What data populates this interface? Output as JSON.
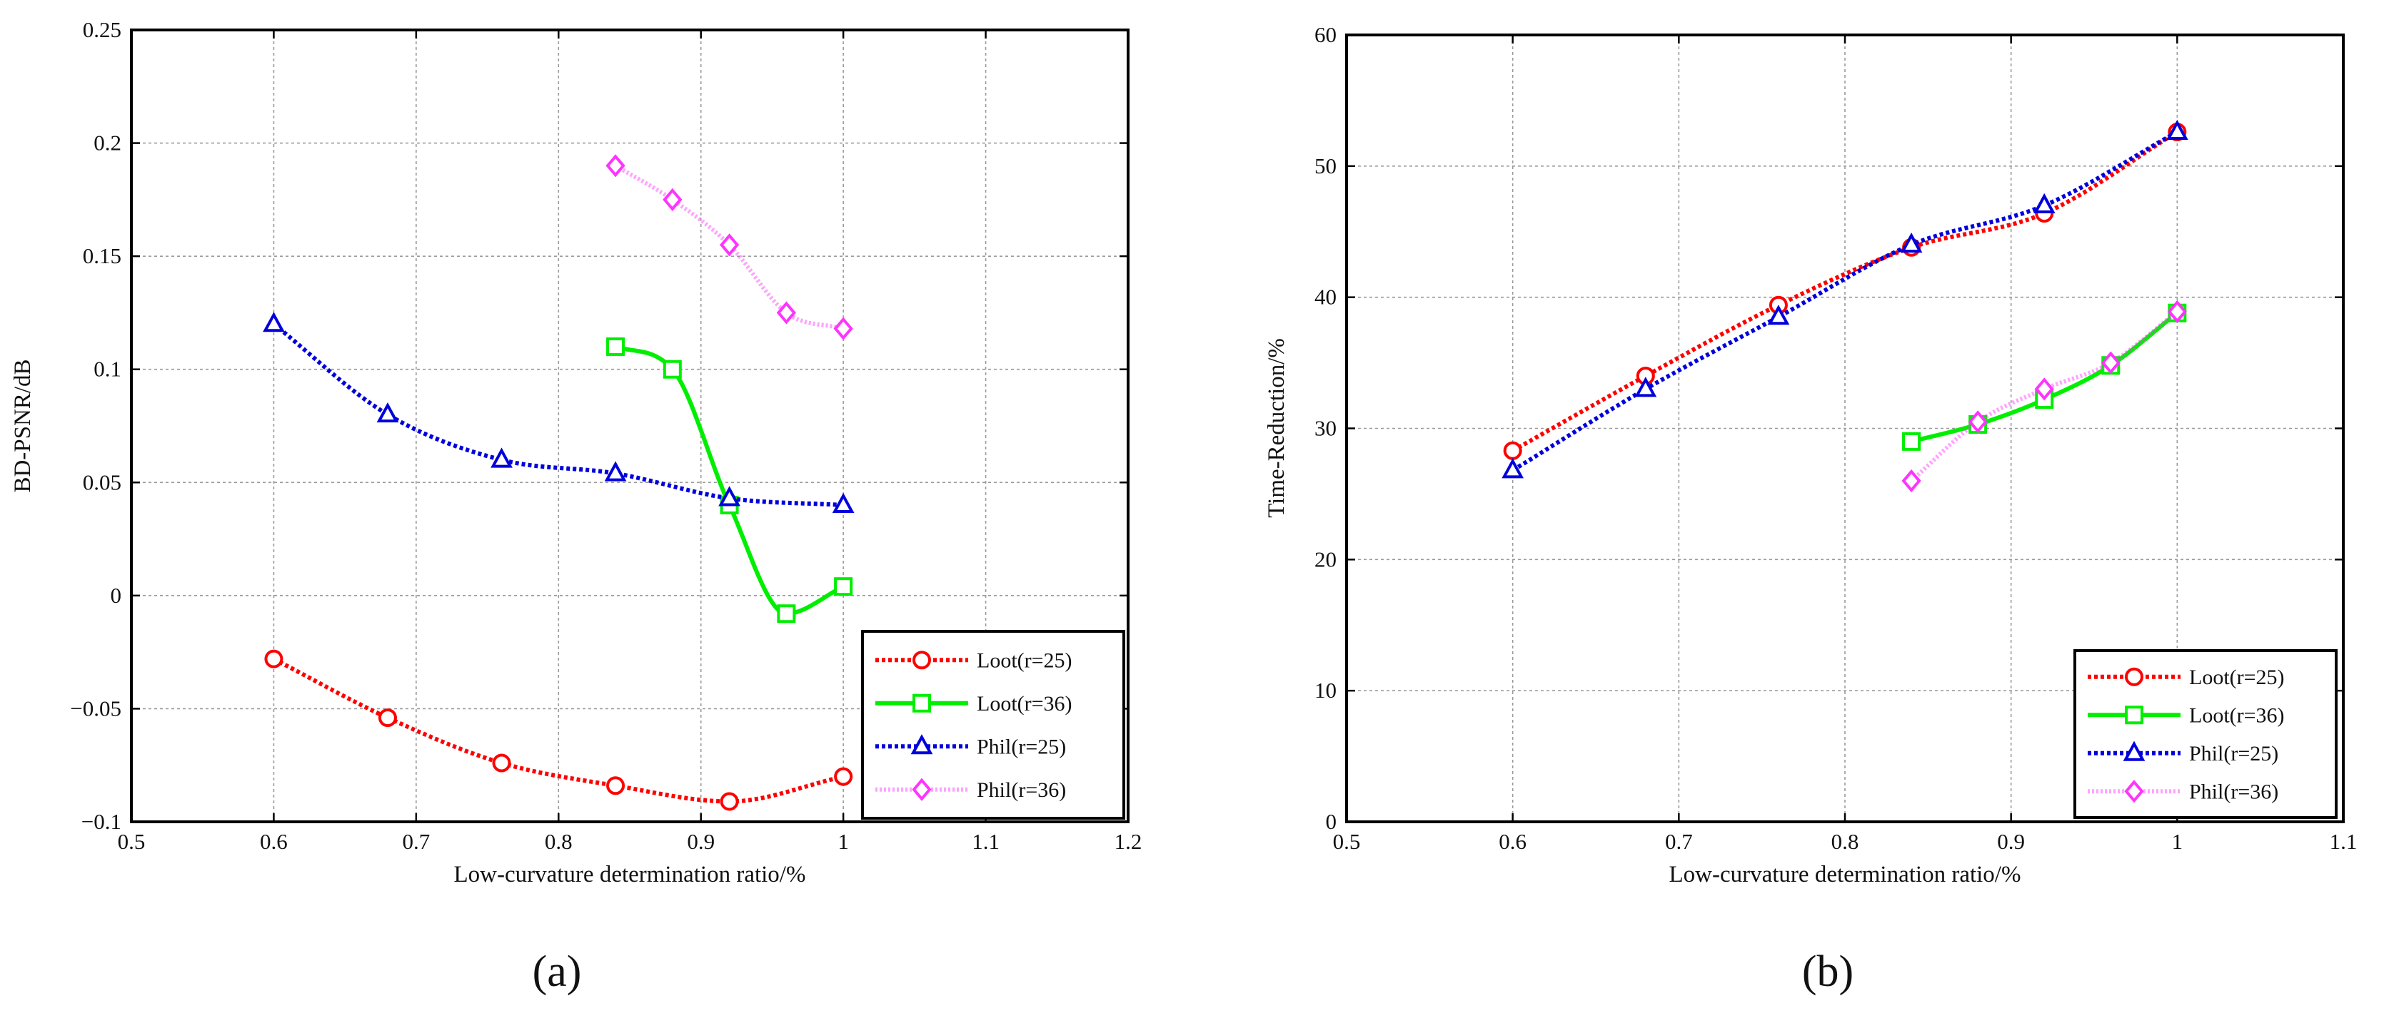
{
  "chart_data": [
    {
      "type": "line",
      "panel_label": "(a)",
      "xlabel": "Low-curvature determination ratio/%",
      "ylabel": "BD-PSNR/dB",
      "xlim": [
        0.5,
        1.2
      ],
      "ylim": [
        -0.1,
        0.25
      ],
      "xticks": [
        0.5,
        0.6,
        0.7,
        0.8,
        0.9,
        1.0,
        1.1,
        1.2
      ],
      "xtick_labels": [
        "0.5",
        "0.6",
        "0.7",
        "0.8",
        "0.9",
        "1",
        "1.1",
        "1.2"
      ],
      "yticks": [
        -0.1,
        -0.05,
        0,
        0.05,
        0.1,
        0.15,
        0.2,
        0.25
      ],
      "ytick_labels": [
        "−0.1",
        "−0.05",
        "0",
        "0.05",
        "0.1",
        "0.15",
        "0.2",
        "0.25"
      ],
      "grid": true,
      "legend_position": "bottom-right",
      "series": [
        {
          "name": "Loot(r=25)",
          "color": "#ff0000",
          "marker": "circle",
          "dash": "dotted",
          "x": [
            0.6,
            0.68,
            0.76,
            0.84,
            0.92,
            1.0
          ],
          "y": [
            -0.028,
            -0.054,
            -0.074,
            -0.084,
            -0.091,
            -0.08
          ]
        },
        {
          "name": "Loot(r=36)",
          "color": "#00ee00",
          "marker": "square",
          "dash": "solid",
          "x": [
            0.84,
            0.88,
            0.92,
            0.96,
            1.0
          ],
          "y": [
            0.11,
            0.1,
            0.04,
            -0.008,
            0.004
          ]
        },
        {
          "name": "Phil(r=25)",
          "color": "#0000dd",
          "marker": "triangle",
          "dash": "dotted",
          "x": [
            0.6,
            0.68,
            0.76,
            0.84,
            0.92,
            1.0
          ],
          "y": [
            0.12,
            0.08,
            0.06,
            0.054,
            0.043,
            0.04
          ]
        },
        {
          "name": "Phil(r=36)",
          "color": "#ff33ff",
          "marker": "diamond",
          "dash": "pale",
          "x": [
            0.84,
            0.88,
            0.92,
            0.96,
            1.0
          ],
          "y": [
            0.19,
            0.175,
            0.155,
            0.125,
            0.118
          ]
        }
      ]
    },
    {
      "type": "line",
      "panel_label": "(b)",
      "xlabel": "Low-curvature determination ratio/%",
      "ylabel": "Time-Reduction/%",
      "xlim": [
        0.5,
        1.1
      ],
      "ylim": [
        0,
        60
      ],
      "xticks": [
        0.5,
        0.6,
        0.7,
        0.8,
        0.9,
        1.0,
        1.1
      ],
      "xtick_labels": [
        "0.5",
        "0.6",
        "0.7",
        "0.8",
        "0.9",
        "1",
        "1.1"
      ],
      "yticks": [
        0,
        10,
        20,
        30,
        40,
        50,
        60
      ],
      "ytick_labels": [
        "0",
        "10",
        "20",
        "30",
        "40",
        "50",
        "60"
      ],
      "grid": true,
      "legend_position": "bottom-right",
      "series": [
        {
          "name": "Loot(r=25)",
          "color": "#ff0000",
          "marker": "circle",
          "dash": "dotted",
          "x": [
            0.6,
            0.68,
            0.76,
            0.84,
            0.92,
            1.0
          ],
          "y": [
            28.3,
            34.0,
            39.4,
            43.8,
            46.4,
            52.6
          ]
        },
        {
          "name": "Loot(r=36)",
          "color": "#00ee00",
          "marker": "square",
          "dash": "solid",
          "x": [
            0.84,
            0.88,
            0.92,
            0.96,
            1.0
          ],
          "y": [
            29.0,
            30.3,
            32.2,
            34.8,
            38.8
          ]
        },
        {
          "name": "Phil(r=25)",
          "color": "#0000dd",
          "marker": "triangle",
          "dash": "dotted",
          "x": [
            0.6,
            0.68,
            0.76,
            0.84,
            0.92,
            1.0
          ],
          "y": [
            26.8,
            33.0,
            38.5,
            44.0,
            47.0,
            52.6
          ]
        },
        {
          "name": "Phil(r=36)",
          "color": "#ff33ff",
          "marker": "diamond",
          "dash": "pale",
          "x": [
            0.84,
            0.88,
            0.92,
            0.96,
            1.0
          ],
          "y": [
            26.0,
            30.5,
            33.0,
            35.0,
            38.9
          ]
        }
      ]
    }
  ]
}
